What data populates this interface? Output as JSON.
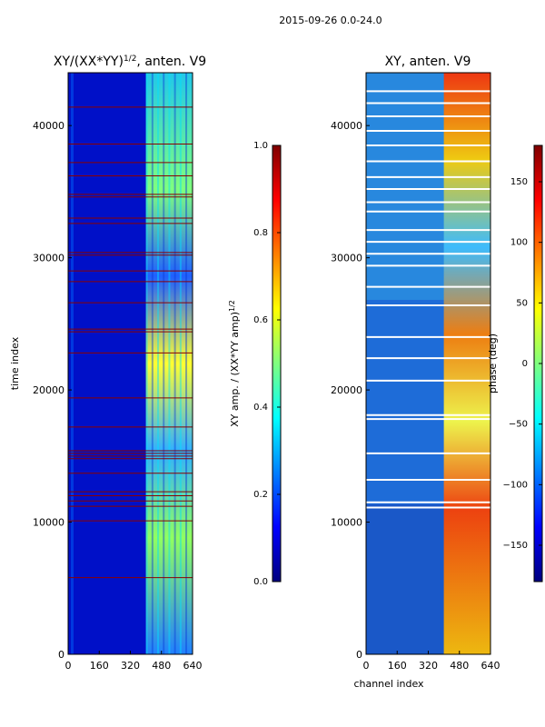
{
  "figure": {
    "suptitle": "2015-09-26 0.0-24.0"
  },
  "colors": {
    "jet_stops": [
      "#00007f",
      "#0000ff",
      "#007fff",
      "#00ffff",
      "#7fff7f",
      "#ffff00",
      "#ff7f00",
      "#ff0000",
      "#7f0000"
    ],
    "hline_red": "#8b0000",
    "hline_white": "#ffffff"
  },
  "chart_data": [
    {
      "type": "heatmap",
      "title": "XY/(XX*YY)",
      "title_exponent": "1/2",
      "title_suffix": ", anten. V9",
      "xlabel": "",
      "ylabel": "time index",
      "xlim": [
        0,
        640
      ],
      "ylim": [
        0,
        44000
      ],
      "xticks": [
        0,
        160,
        320,
        480,
        640
      ],
      "yticks": [
        0,
        10000,
        20000,
        30000,
        40000
      ],
      "bright_band_channels": [
        400,
        640
      ],
      "hline_times": [
        5800,
        10100,
        11200,
        11600,
        12000,
        12300,
        13700,
        14800,
        15000,
        15200,
        15400,
        17200,
        19400,
        22800,
        24400,
        24600,
        26600,
        28200,
        29000,
        30200,
        30400,
        32600,
        33000,
        34600,
        34800,
        36200,
        37200,
        38600,
        41400
      ],
      "colorbar": {
        "label": "XY amp. / (XX*YY amp)",
        "label_exponent": "1/2",
        "range": [
          0.0,
          1.0
        ],
        "ticks": [
          "0.0",
          "0.2",
          "0.4",
          "0.6",
          "0.8",
          "1.0"
        ]
      }
    },
    {
      "type": "heatmap",
      "title": "XY, anten. V9",
      "xlabel": "channel index",
      "ylabel": "",
      "xlim": [
        0,
        640
      ],
      "ylim": [
        0,
        44000
      ],
      "xticks": [
        0,
        160,
        320,
        480,
        640
      ],
      "yticks": [
        0,
        10000,
        20000,
        30000,
        40000
      ],
      "bright_band_channels": [
        400,
        640
      ],
      "hline_times": [
        11100,
        11500,
        13200,
        15200,
        17800,
        18100,
        20700,
        22400,
        24000,
        26400,
        27800,
        29400,
        30300,
        31200,
        32100,
        33500,
        34200,
        35200,
        36100,
        37300,
        38500,
        39600,
        40700,
        41700,
        42600
      ],
      "colorbar": {
        "label": "phase (deg)",
        "range": [
          -180,
          180
        ],
        "ticks": [
          "150",
          "100",
          "50",
          "0",
          "−50",
          "−100",
          "−150"
        ]
      }
    }
  ]
}
